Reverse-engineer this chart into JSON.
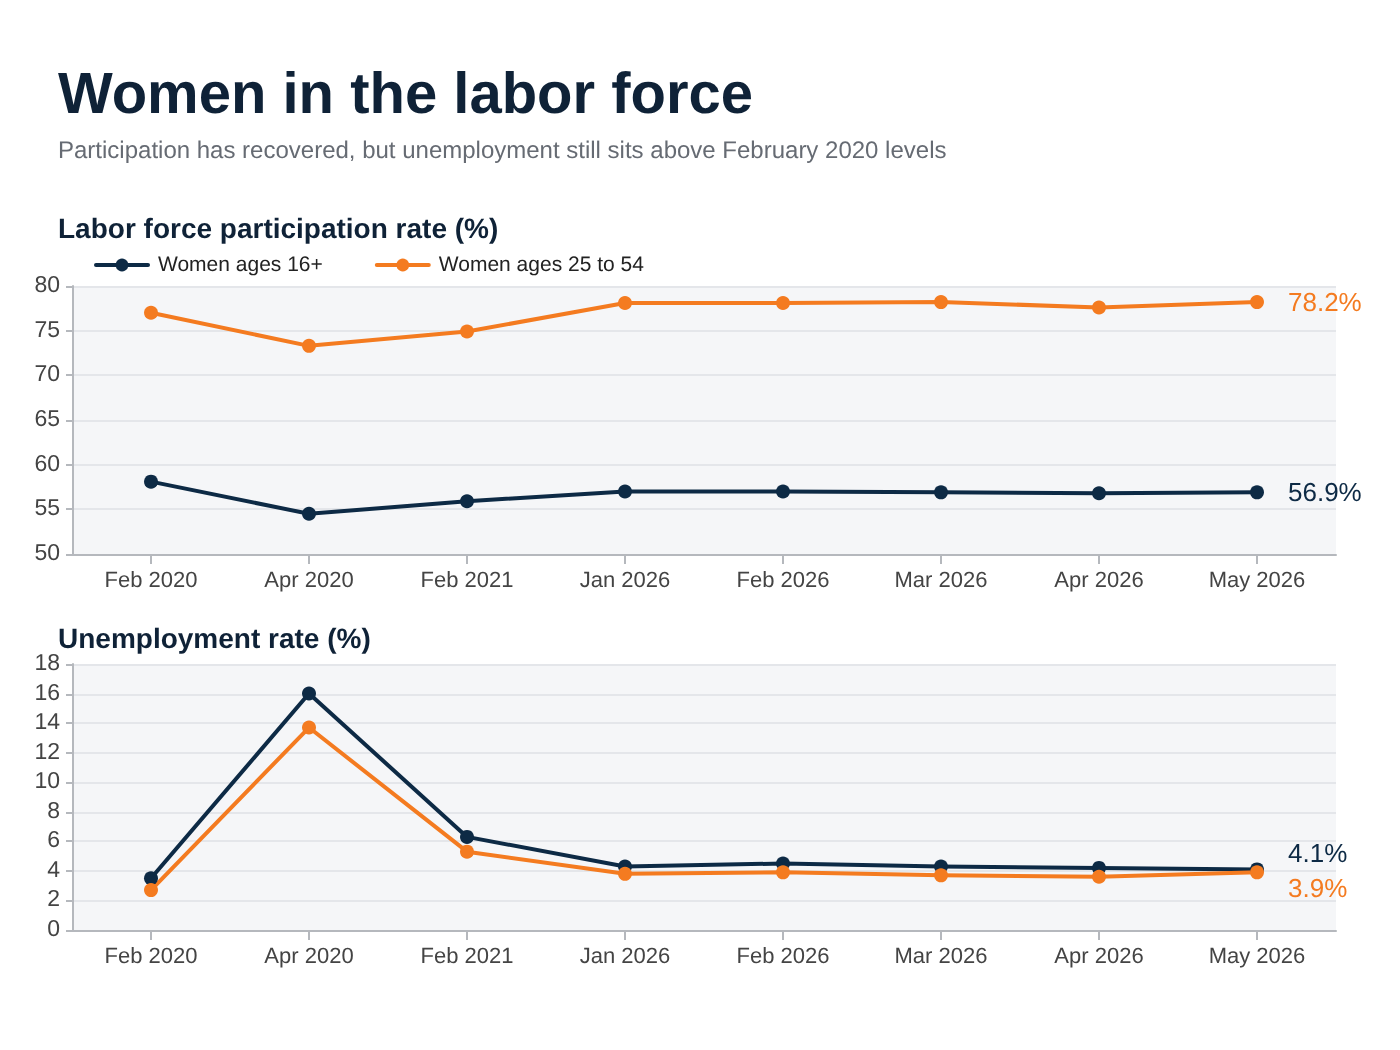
{
  "chart_data": [
    {
      "type": "other",
      "title": "Women in the labor force",
      "subtitle": "Participation has recovered, but unemployment still sits above February 2020 levels"
    },
    {
      "type": "line",
      "title": "Labor force participation rate (%)",
      "categories": [
        "Feb 2020",
        "Apr 2020",
        "Feb 2021",
        "Jan 2026",
        "Feb 2026",
        "Mar 2026",
        "Apr 2026",
        "May 2026"
      ],
      "series": [
        {
          "name": "Women ages 16+",
          "color": "#0d2a45",
          "values": [
            58.1,
            54.5,
            55.9,
            57.0,
            57.0,
            56.9,
            56.8,
            56.9
          ],
          "value_labels": [
            null,
            null,
            null,
            null,
            null,
            null,
            null,
            "56.9%"
          ]
        },
        {
          "name": "Women ages 25 to 54",
          "color": "#f47b20",
          "values": [
            77.0,
            73.3,
            74.9,
            78.1,
            78.1,
            78.2,
            77.6,
            78.2
          ],
          "value_labels": [
            null,
            null,
            null,
            null,
            null,
            null,
            null,
            "78.2%"
          ]
        }
      ],
      "ylim": [
        50,
        80
      ],
      "yticks": [
        50,
        55,
        60,
        65,
        70,
        75,
        80
      ],
      "grid": "y",
      "legend": "top left",
      "marker": "circle",
      "line_style": "solid"
    },
    {
      "type": "line",
      "title": "Unemployment rate (%)",
      "categories": [
        "Feb 2020",
        "Apr 2020",
        "Feb 2021",
        "Jan 2026",
        "Feb 2026",
        "Mar 2026",
        "Apr 2026",
        "May 2026"
      ],
      "series": [
        {
          "color": "#0d2a45",
          "values": [
            3.5,
            16.0,
            6.3,
            4.3,
            4.5,
            4.3,
            4.2,
            4.1
          ],
          "value_labels": [
            null,
            null,
            null,
            null,
            null,
            null,
            null,
            "4.1%"
          ]
        },
        {
          "color": "#f47b20",
          "values": [
            2.7,
            13.7,
            5.3,
            3.8,
            3.9,
            3.7,
            3.6,
            3.9
          ],
          "value_labels": [
            null,
            null,
            null,
            null,
            null,
            null,
            null,
            "3.9%"
          ]
        }
      ],
      "ylim": [
        0,
        18
      ],
      "yticks": [
        0,
        2,
        4,
        6,
        8,
        10,
        12,
        14,
        16,
        18
      ],
      "grid": "y",
      "marker": "circle",
      "line_style": "solid"
    }
  ]
}
